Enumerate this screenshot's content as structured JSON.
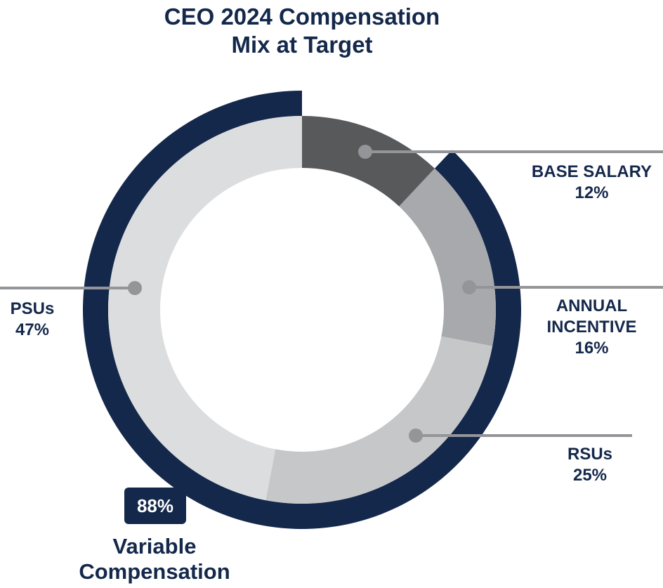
{
  "colors": {
    "navy": "#14284b",
    "base_salary": "#58595b",
    "annual_incentive": "#a7a9ac",
    "rsus": "#c6c7c9",
    "psus": "#dcdddf",
    "leader": "#939598"
  },
  "chart_data": {
    "type": "pie",
    "variant": "donut",
    "title": "CEO 2024 Compensation Mix at Target",
    "title_lines": [
      "CEO 2024 Compensation",
      "Mix at Target"
    ],
    "slices": [
      {
        "key": "base_salary",
        "label_lines": [
          "BASE SALARY"
        ],
        "label": "BASE SALARY",
        "value": 12,
        "value_label": "12%",
        "color": "#58595b"
      },
      {
        "key": "annual_incentive",
        "label_lines": [
          "ANNUAL",
          "INCENTIVE"
        ],
        "label": "ANNUAL INCENTIVE",
        "value": 16,
        "value_label": "16%",
        "color": "#a7a9ac"
      },
      {
        "key": "rsus",
        "label_lines": [
          "RSUs"
        ],
        "label": "RSUs",
        "value": 25,
        "value_label": "25%",
        "color": "#c6c7c9"
      },
      {
        "key": "psus",
        "label_lines": [
          "PSUs"
        ],
        "label": "PSUs",
        "value": 47,
        "value_label": "47%",
        "color": "#dcdddf"
      }
    ],
    "outer_ring": {
      "value": 88,
      "value_label": "88%",
      "label_lines": [
        "Variable",
        "Compensation"
      ],
      "label": "Variable Compensation",
      "start_after": "base_salary",
      "color": "#14284b"
    }
  }
}
